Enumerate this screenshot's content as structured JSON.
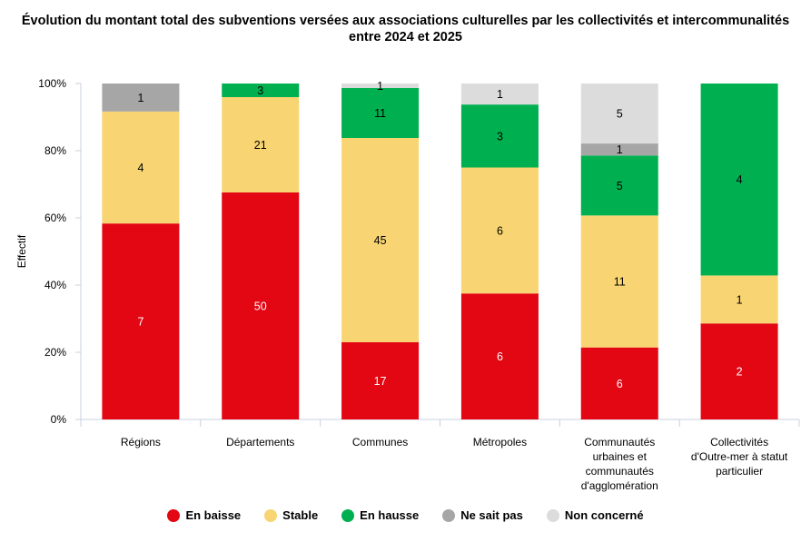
{
  "chart_data": {
    "type": "bar",
    "stacked": "percent",
    "title_lines": [
      "Évolution du montant total des subventions versées aux associations culturelles par les collectivités et intercommunalités",
      "entre 2024 et 2025"
    ],
    "ylabel": "Effectif",
    "ylim": [
      0,
      100
    ],
    "yticks": [
      "0%",
      "20%",
      "40%",
      "60%",
      "80%",
      "100%"
    ],
    "categories": [
      [
        "Régions"
      ],
      [
        "Départements"
      ],
      [
        "Communes"
      ],
      [
        "Métropoles"
      ],
      [
        "Communautés",
        "urbaines et",
        "communautés",
        "d'agglomération"
      ],
      [
        "Collectivités",
        "d'Outre-mer à statut",
        "particulier"
      ]
    ],
    "series": [
      {
        "name": "En baisse",
        "color": "#e30613",
        "values": [
          7,
          50,
          17,
          6,
          6,
          2
        ]
      },
      {
        "name": "Stable",
        "color": "#f8d572",
        "values": [
          4,
          21,
          45,
          6,
          11,
          1
        ]
      },
      {
        "name": "En hausse",
        "color": "#00b050",
        "values": [
          0,
          3,
          11,
          3,
          5,
          4
        ]
      },
      {
        "name": "Ne sait pas",
        "color": "#a6a6a6",
        "values": [
          1,
          0,
          0,
          0,
          1,
          0
        ]
      },
      {
        "name": "Non concerné",
        "color": "#dcdcdc",
        "values": [
          0,
          0,
          1,
          1,
          5,
          0
        ]
      }
    ],
    "legend_position": "bottom",
    "grid": false
  }
}
